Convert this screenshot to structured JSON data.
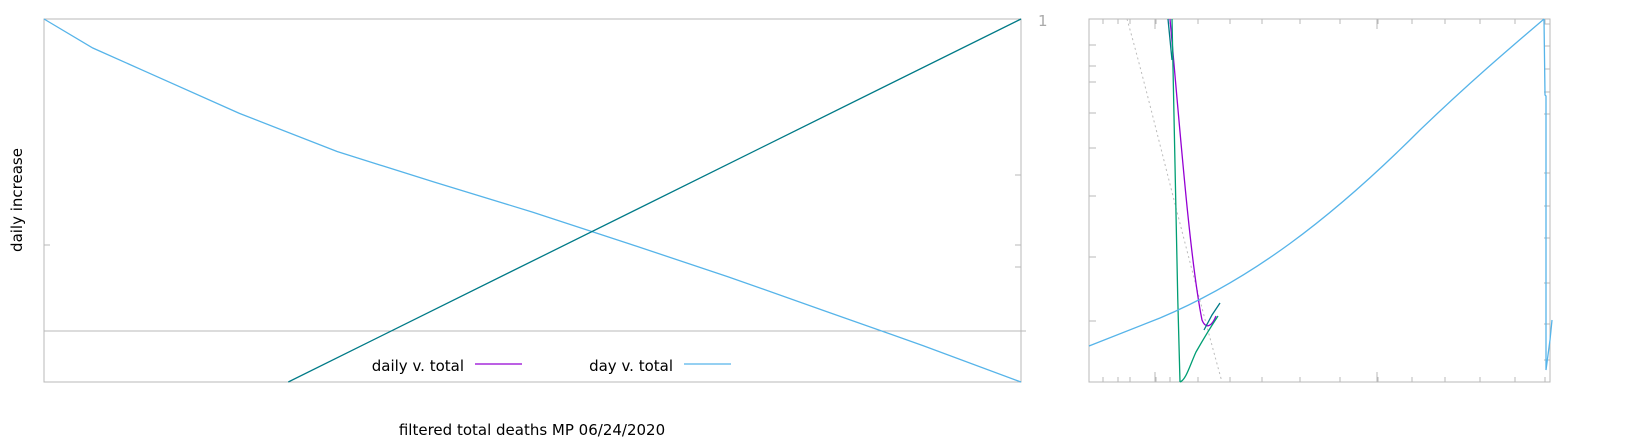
{
  "colors": {
    "daily": "#9400d3",
    "day": "#56b4e9",
    "fit": "#007a87",
    "green": "#009e73",
    "frame": "#b8b8b8"
  },
  "chart_data": [
    {
      "type": "line",
      "xlabel": "filtered total deaths MP 06/24/2020",
      "ylabel": "daily increase",
      "right_tick_labels": [
        "1"
      ],
      "legend_placement": "bottom-center",
      "legend": [
        {
          "label": "daily v. total",
          "color": "#9400d3"
        },
        {
          "label": "day v. total",
          "color": "#56b4e9"
        }
      ],
      "xlim": [
        0,
        1
      ],
      "ylim": [
        0,
        1
      ],
      "series": [
        {
          "name": "day v. total",
          "color": "#56b4e9",
          "x": [
            0,
            0.05,
            0.1,
            0.2,
            0.3,
            0.4,
            0.5,
            0.6,
            0.7,
            0.8,
            0.9,
            1.0
          ],
          "y": [
            1.0,
            0.92,
            0.86,
            0.74,
            0.635,
            0.55,
            0.468,
            0.38,
            0.29,
            0.195,
            0.1,
            0.0
          ]
        },
        {
          "color": "#007a87",
          "x": [
            0.25,
            1.0
          ],
          "y": [
            0.0,
            1.0
          ]
        }
      ],
      "reference_lines": [
        {
          "axis": "y",
          "value": 0.14
        }
      ]
    },
    {
      "type": "line",
      "log_scale": "x",
      "series": [
        {
          "name": "daily v. total",
          "color": "#9400d3",
          "x": [
            0.18,
            0.2,
            0.22,
            0.24,
            0.26,
            0.28
          ],
          "y": [
            1.0,
            0.6,
            0.35,
            0.2,
            0.16,
            0.18
          ]
        },
        {
          "name": "day v. total",
          "color": "#56b4e9",
          "x": [
            0,
            0.15,
            0.3,
            0.5,
            0.7,
            0.9,
            1.0
          ],
          "y": [
            0.1,
            0.18,
            0.28,
            0.45,
            0.65,
            0.88,
            1.0
          ]
        },
        {
          "color": "#009e73",
          "x": [
            0.19,
            0.2,
            0.21,
            0.23,
            0.26,
            0.29
          ],
          "y": [
            1.0,
            0.5,
            0.0,
            0.05,
            0.15,
            0.22
          ]
        }
      ]
    }
  ]
}
